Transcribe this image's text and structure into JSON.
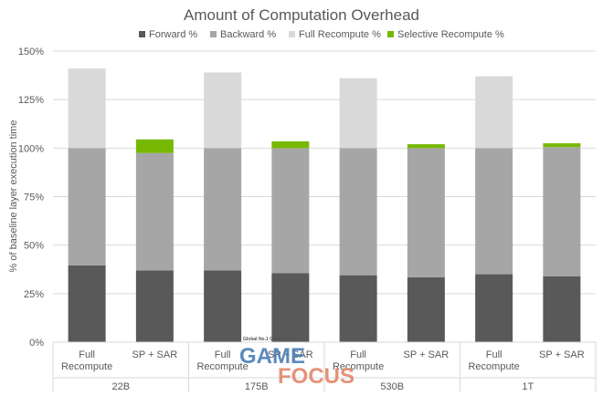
{
  "chart_data": {
    "type": "bar",
    "stacked": true,
    "title": "Amount of Computation Overhead",
    "ylabel": "% of baseline layer execution time",
    "ylim": [
      0,
      150
    ],
    "yticks": [
      "0%",
      "25%",
      "50%",
      "75%",
      "100%",
      "125%",
      "150%"
    ],
    "ytick_values": [
      0,
      25,
      50,
      75,
      100,
      125,
      150
    ],
    "grid": true,
    "legend_position": "top",
    "groups": [
      "22B",
      "175B",
      "530B",
      "1T"
    ],
    "categories": [
      "Full\nRecompute",
      "SP + SAR",
      "Full\nRecompute",
      "SP + SAR",
      "Full\nRecompute",
      "SP + SAR",
      "Full\nRecompute",
      "SP + SAR"
    ],
    "series": [
      {
        "name": "Forward %",
        "color": "#595959",
        "values": [
          39.5,
          37,
          37,
          35.5,
          34.5,
          33.5,
          35,
          34
        ]
      },
      {
        "name": "Backward %",
        "color": "#a6a6a6",
        "values": [
          60.5,
          60.5,
          63,
          64.5,
          65.5,
          66.5,
          65,
          66.5
        ]
      },
      {
        "name": "Full Recompute %",
        "color": "#d9d9d9",
        "values": [
          41,
          0,
          39,
          0,
          36,
          0,
          37,
          0
        ]
      },
      {
        "name": "Selective Recompute %",
        "color": "#76b900",
        "values": [
          0,
          7,
          0,
          3.5,
          0,
          2,
          0,
          2
        ]
      }
    ]
  },
  "watermark": {
    "small": "Global No.1 Game Media",
    "word1": "GAME",
    "word2": "FOCUS"
  }
}
